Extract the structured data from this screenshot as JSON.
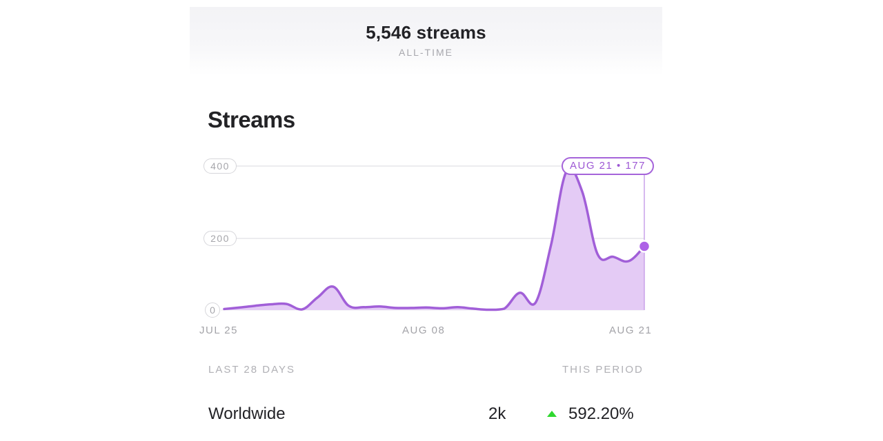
{
  "summary": {
    "total_streams": "5,546 streams",
    "period_label": "ALL-TIME"
  },
  "section": {
    "title": "Streams"
  },
  "tooltip": {
    "text": "AUG 21 • 177",
    "date": "AUG 21",
    "value": 177
  },
  "colors": {
    "accent": "#a564da",
    "fill": "#e4cbf5",
    "gridline": "#e6e6ea",
    "up_arrow": "#2fd82f"
  },
  "chart_data": {
    "type": "area",
    "title": "Streams",
    "xlabel": "",
    "ylabel": "",
    "ylim": [
      0,
      400
    ],
    "y_ticks": [
      "0",
      "200",
      "400"
    ],
    "x_tick_labels": [
      "JUL 25",
      "AUG 08",
      "AUG 21"
    ],
    "grid": true,
    "legend": "none",
    "highlight": {
      "x": "AUG 21",
      "y": 177
    },
    "x": [
      "Jul 25",
      "Jul 26",
      "Jul 27",
      "Jul 28",
      "Jul 29",
      "Jul 30",
      "Jul 31",
      "Aug 01",
      "Aug 02",
      "Aug 03",
      "Aug 04",
      "Aug 05",
      "Aug 06",
      "Aug 07",
      "Aug 08",
      "Aug 09",
      "Aug 10",
      "Aug 11",
      "Aug 12",
      "Aug 13",
      "Aug 14",
      "Aug 15",
      "Aug 16",
      "Aug 17",
      "Aug 18",
      "Aug 19",
      "Aug 20",
      "Aug 21"
    ],
    "series": [
      {
        "name": "Streams",
        "values": [
          3,
          7,
          12,
          16,
          17,
          2,
          35,
          65,
          12,
          8,
          10,
          6,
          6,
          7,
          5,
          8,
          4,
          1,
          4,
          48,
          20,
          180,
          385,
          330,
          155,
          148,
          136,
          177
        ]
      }
    ]
  },
  "axis": {
    "y400": "400",
    "y200": "200",
    "y0": "0",
    "x_start": "JUL 25",
    "x_mid": "AUG 08",
    "x_end": "AUG 21"
  },
  "table": {
    "range_label": "LAST 28 DAYS",
    "period_header": "THIS PERIOD",
    "rows": [
      {
        "region": "Worldwide",
        "streams": "2k",
        "change": "592.20%",
        "trend": "up"
      }
    ]
  }
}
